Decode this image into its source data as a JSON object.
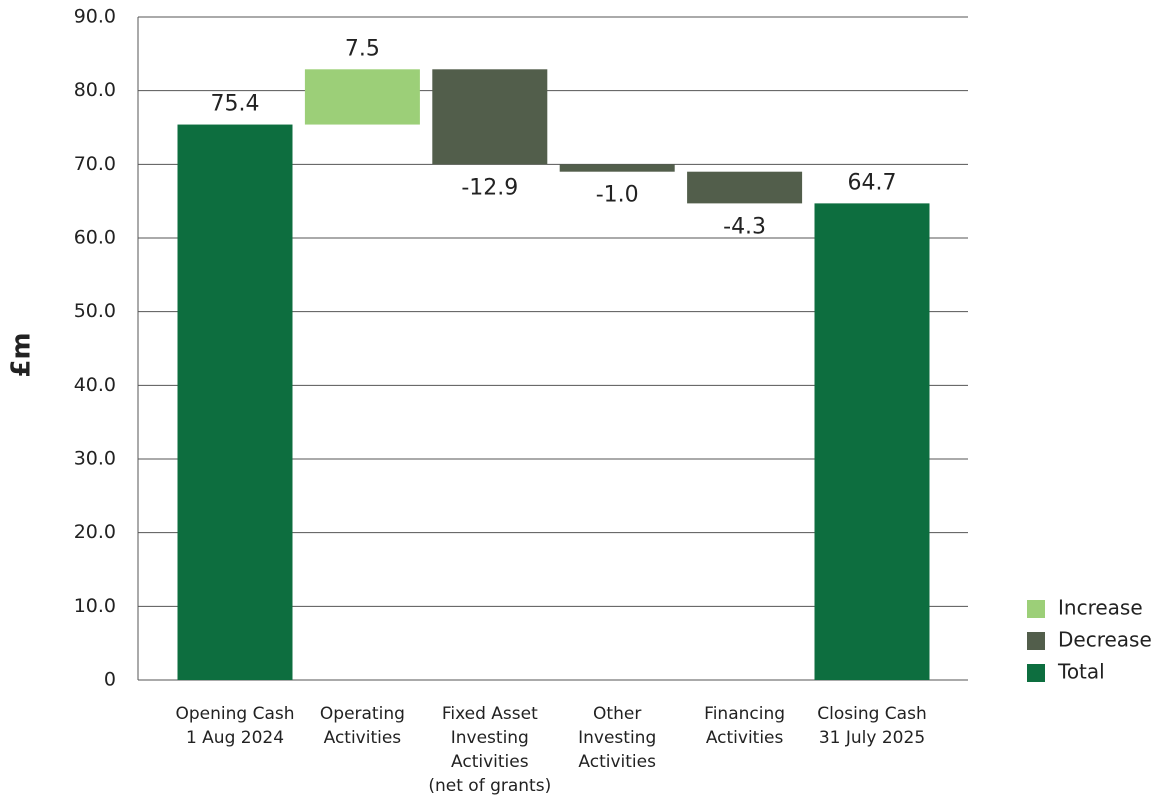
{
  "chart_data": {
    "type": "waterfall",
    "ylabel": "£m",
    "categories": [
      [
        "Opening Cash",
        "1 Aug 2024"
      ],
      [
        "Operating",
        "Activities"
      ],
      [
        "Fixed Asset",
        "Investing",
        "Activities",
        "(net of grants)"
      ],
      [
        "Other",
        "Investing",
        "Activities"
      ],
      [
        "Financing",
        "Activities"
      ],
      [
        "Closing Cash",
        "31 July 2025"
      ]
    ],
    "values": [
      75.4,
      7.5,
      -12.9,
      -1.0,
      -4.3,
      64.7
    ],
    "value_labels": [
      "75.4",
      "7.5",
      "-12.9",
      "-1.0",
      "-4.3",
      "64.7"
    ],
    "legend": [
      {
        "name": "Increase",
        "color": "#9ccf78"
      },
      {
        "name": "Decrease",
        "color": "#525e4b"
      },
      {
        "name": "Total",
        "color": "#0d6e3f"
      }
    ],
    "ylim": [
      0,
      90
    ],
    "yticks": [
      0,
      {
        "value": 10,
        "label": "10.0"
      },
      {
        "value": 20,
        "label": "20.0"
      },
      {
        "value": 30,
        "label": "30.0"
      },
      {
        "value": 40,
        "label": "40.0"
      },
      {
        "value": 50,
        "label": "50.0"
      },
      {
        "value": 60,
        "label": "60.0"
      },
      {
        "value": 70,
        "label": "70.0"
      },
      {
        "value": 80,
        "label": "80.0"
      },
      {
        "value": 90,
        "label": "90.0"
      }
    ],
    "grid": true
  }
}
